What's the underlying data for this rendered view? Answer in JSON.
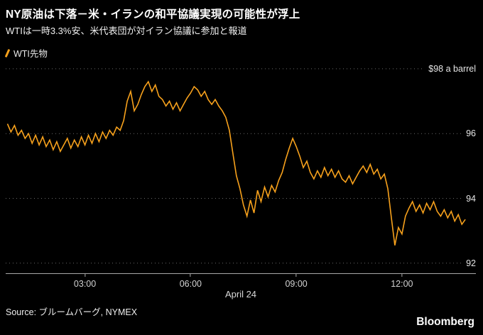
{
  "header": {
    "title": "NY原油は下落－米・イランの和平協議実現の可能性が浮上",
    "subtitle": "WTIは一時3.3%安、米代表団が対イラン協議に参加と報道"
  },
  "legend": {
    "label": "WTI先物"
  },
  "footer": {
    "source": "Source: ブルームバーグ, NYMEX",
    "brand": "Bloomberg"
  },
  "colors": {
    "accent": "#F7A11C",
    "background": "#000000",
    "grid": "#6a6a6a",
    "axis": "#a8a8a8",
    "text": "#ffffff"
  },
  "chart_data": {
    "type": "line",
    "title": "NY原油は下落－米・イランの和平協議実現の可能性が浮上",
    "series_name": "WTI先物",
    "xlabel": "April 24",
    "ylabel": "$ a barrel",
    "xlim": [
      0.75,
      14.1
    ],
    "ylim": [
      91.69,
      98.26
    ],
    "grid": "dotted-horizontal",
    "legend_position": "top-left",
    "gridlines": [
      98,
      96,
      94,
      92
    ],
    "y_labels": [
      {
        "value": 98,
        "label": "$98 a barrel"
      },
      {
        "value": 96,
        "label": "96"
      },
      {
        "value": 94,
        "label": "94"
      },
      {
        "value": 92,
        "label": "92"
      }
    ],
    "x_ticks": [
      {
        "t": 3,
        "label": "03:00"
      },
      {
        "t": 6,
        "label": "06:00"
      },
      {
        "t": 9,
        "label": "09:00"
      },
      {
        "t": 12,
        "label": "12:00"
      }
    ],
    "points": [
      [
        0.8,
        96.3
      ],
      [
        0.9,
        96.05
      ],
      [
        1.0,
        96.25
      ],
      [
        1.1,
        95.95
      ],
      [
        1.2,
        96.1
      ],
      [
        1.3,
        95.85
      ],
      [
        1.4,
        96.0
      ],
      [
        1.5,
        95.7
      ],
      [
        1.6,
        95.95
      ],
      [
        1.7,
        95.65
      ],
      [
        1.8,
        95.9
      ],
      [
        1.9,
        95.6
      ],
      [
        2.0,
        95.8
      ],
      [
        2.1,
        95.5
      ],
      [
        2.2,
        95.75
      ],
      [
        2.3,
        95.45
      ],
      [
        2.4,
        95.65
      ],
      [
        2.5,
        95.85
      ],
      [
        2.6,
        95.55
      ],
      [
        2.7,
        95.8
      ],
      [
        2.8,
        95.6
      ],
      [
        2.9,
        95.9
      ],
      [
        3.0,
        95.65
      ],
      [
        3.1,
        95.95
      ],
      [
        3.2,
        95.7
      ],
      [
        3.3,
        96.0
      ],
      [
        3.4,
        95.75
      ],
      [
        3.5,
        96.05
      ],
      [
        3.6,
        95.85
      ],
      [
        3.7,
        96.1
      ],
      [
        3.8,
        95.95
      ],
      [
        3.9,
        96.2
      ],
      [
        4.0,
        96.1
      ],
      [
        4.1,
        96.4
      ],
      [
        4.2,
        97.0
      ],
      [
        4.3,
        97.3
      ],
      [
        4.4,
        96.7
      ],
      [
        4.5,
        96.9
      ],
      [
        4.6,
        97.2
      ],
      [
        4.7,
        97.45
      ],
      [
        4.8,
        97.6
      ],
      [
        4.9,
        97.3
      ],
      [
        5.0,
        97.5
      ],
      [
        5.1,
        97.15
      ],
      [
        5.2,
        97.05
      ],
      [
        5.3,
        96.85
      ],
      [
        5.4,
        97.0
      ],
      [
        5.5,
        96.75
      ],
      [
        5.6,
        96.95
      ],
      [
        5.7,
        96.7
      ],
      [
        5.8,
        96.9
      ],
      [
        5.9,
        97.1
      ],
      [
        6.0,
        97.25
      ],
      [
        6.1,
        97.45
      ],
      [
        6.2,
        97.35
      ],
      [
        6.3,
        97.15
      ],
      [
        6.4,
        97.3
      ],
      [
        6.5,
        97.05
      ],
      [
        6.6,
        96.9
      ],
      [
        6.7,
        97.05
      ],
      [
        6.8,
        96.85
      ],
      [
        6.9,
        96.7
      ],
      [
        7.0,
        96.5
      ],
      [
        7.1,
        96.1
      ],
      [
        7.2,
        95.4
      ],
      [
        7.3,
        94.7
      ],
      [
        7.4,
        94.3
      ],
      [
        7.5,
        93.8
      ],
      [
        7.6,
        93.45
      ],
      [
        7.7,
        93.95
      ],
      [
        7.8,
        93.55
      ],
      [
        7.9,
        94.25
      ],
      [
        8.0,
        93.9
      ],
      [
        8.1,
        94.35
      ],
      [
        8.2,
        94.05
      ],
      [
        8.3,
        94.4
      ],
      [
        8.4,
        94.2
      ],
      [
        8.5,
        94.55
      ],
      [
        8.6,
        94.8
      ],
      [
        8.7,
        95.2
      ],
      [
        8.8,
        95.55
      ],
      [
        8.9,
        95.85
      ],
      [
        9.0,
        95.6
      ],
      [
        9.1,
        95.3
      ],
      [
        9.2,
        94.95
      ],
      [
        9.3,
        95.15
      ],
      [
        9.4,
        94.8
      ],
      [
        9.5,
        94.6
      ],
      [
        9.6,
        94.85
      ],
      [
        9.7,
        94.65
      ],
      [
        9.8,
        94.95
      ],
      [
        9.9,
        94.7
      ],
      [
        10.0,
        94.9
      ],
      [
        10.1,
        94.65
      ],
      [
        10.2,
        94.85
      ],
      [
        10.3,
        94.6
      ],
      [
        10.4,
        94.5
      ],
      [
        10.5,
        94.7
      ],
      [
        10.6,
        94.45
      ],
      [
        10.7,
        94.65
      ],
      [
        10.8,
        94.85
      ],
      [
        10.9,
        95.0
      ],
      [
        11.0,
        94.8
      ],
      [
        11.1,
        95.05
      ],
      [
        11.2,
        94.75
      ],
      [
        11.3,
        94.9
      ],
      [
        11.4,
        94.6
      ],
      [
        11.5,
        94.75
      ],
      [
        11.6,
        94.3
      ],
      [
        11.7,
        93.4
      ],
      [
        11.8,
        92.55
      ],
      [
        11.9,
        93.1
      ],
      [
        12.0,
        92.9
      ],
      [
        12.1,
        93.45
      ],
      [
        12.2,
        93.7
      ],
      [
        12.3,
        93.9
      ],
      [
        12.4,
        93.6
      ],
      [
        12.5,
        93.8
      ],
      [
        12.6,
        93.55
      ],
      [
        12.7,
        93.85
      ],
      [
        12.8,
        93.65
      ],
      [
        12.9,
        93.9
      ],
      [
        13.0,
        93.6
      ],
      [
        13.1,
        93.45
      ],
      [
        13.2,
        93.65
      ],
      [
        13.3,
        93.4
      ],
      [
        13.4,
        93.6
      ],
      [
        13.5,
        93.3
      ],
      [
        13.6,
        93.5
      ],
      [
        13.7,
        93.2
      ],
      [
        13.8,
        93.35
      ]
    ]
  }
}
